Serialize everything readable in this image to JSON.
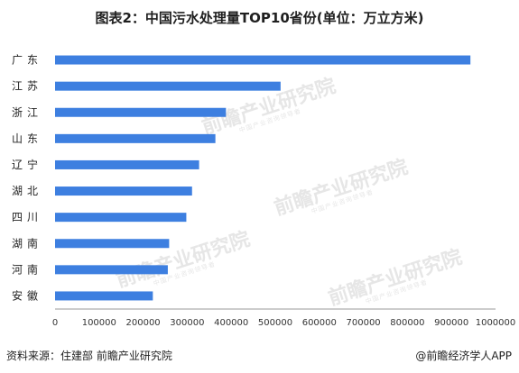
{
  "header": {
    "title": "图表2：中国污水处理量TOP10省份(单位：万立方米)"
  },
  "watermark": {
    "text": "前瞻产业研究院",
    "sub": "中国产业咨询领导者"
  },
  "footer": {
    "source": "资料来源：住建部 前瞻产业研究院",
    "brand": "@前瞻经济学人APP"
  },
  "colors": {
    "bar": "#3d7fe0"
  },
  "chart_data": {
    "type": "bar",
    "orientation": "horizontal",
    "title": "图表2：中国污水处理量TOP10省份(单位：万立方米)",
    "categories": [
      "广东",
      "江苏",
      "浙江",
      "山东",
      "辽宁",
      "湖北",
      "四川",
      "湖南",
      "河南",
      "安徽"
    ],
    "values": [
      943000,
      512000,
      388000,
      364000,
      327000,
      311000,
      298000,
      259000,
      256000,
      222000
    ],
    "xlim": [
      0,
      1000000
    ],
    "xticks": [
      0,
      100000,
      200000,
      300000,
      400000,
      500000,
      600000,
      700000,
      800000,
      900000,
      1000000
    ],
    "grid": false,
    "legend": "none"
  }
}
